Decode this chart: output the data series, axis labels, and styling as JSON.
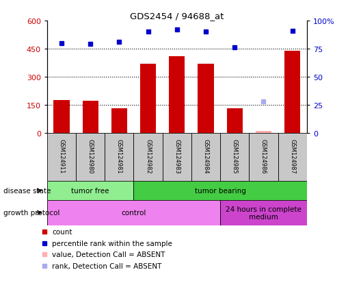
{
  "title": "GDS2454 / 94688_at",
  "samples": [
    "GSM124911",
    "GSM124980",
    "GSM124981",
    "GSM124982",
    "GSM124983",
    "GSM124984",
    "GSM124985",
    "GSM124986",
    "GSM124987"
  ],
  "count_values": [
    175,
    170,
    130,
    370,
    410,
    370,
    130,
    10,
    440
  ],
  "count_absent": [
    false,
    false,
    false,
    false,
    false,
    false,
    false,
    true,
    false
  ],
  "percentile_values": [
    80,
    79,
    81,
    90,
    92,
    90,
    76,
    28,
    91
  ],
  "percentile_absent": [
    false,
    false,
    false,
    false,
    false,
    false,
    false,
    true,
    false
  ],
  "ylim_left": [
    0,
    600
  ],
  "ylim_right": [
    0,
    100
  ],
  "yticks_left": [
    0,
    150,
    300,
    450,
    600
  ],
  "yticks_right": [
    0,
    25,
    50,
    75,
    100
  ],
  "disease_state": [
    {
      "label": "tumor free",
      "start": 0,
      "end": 3,
      "color": "#90EE90"
    },
    {
      "label": "tumor bearing",
      "start": 3,
      "end": 9,
      "color": "#44CC44"
    }
  ],
  "growth_protocol": [
    {
      "label": "control",
      "start": 0,
      "end": 6,
      "color": "#EE82EE"
    },
    {
      "label": "24 hours in complete\nmedium",
      "start": 6,
      "end": 9,
      "color": "#CC44CC"
    }
  ],
  "bar_color": "#CC0000",
  "absent_bar_color": "#FFB0B0",
  "dot_color": "#0000CC",
  "absent_dot_color": "#AAAAEE",
  "bg_color": "#FFFFFF",
  "tick_label_color_left": "#CC0000",
  "tick_label_color_right": "#0000CC",
  "cell_bg_color": "#C8C8C8"
}
